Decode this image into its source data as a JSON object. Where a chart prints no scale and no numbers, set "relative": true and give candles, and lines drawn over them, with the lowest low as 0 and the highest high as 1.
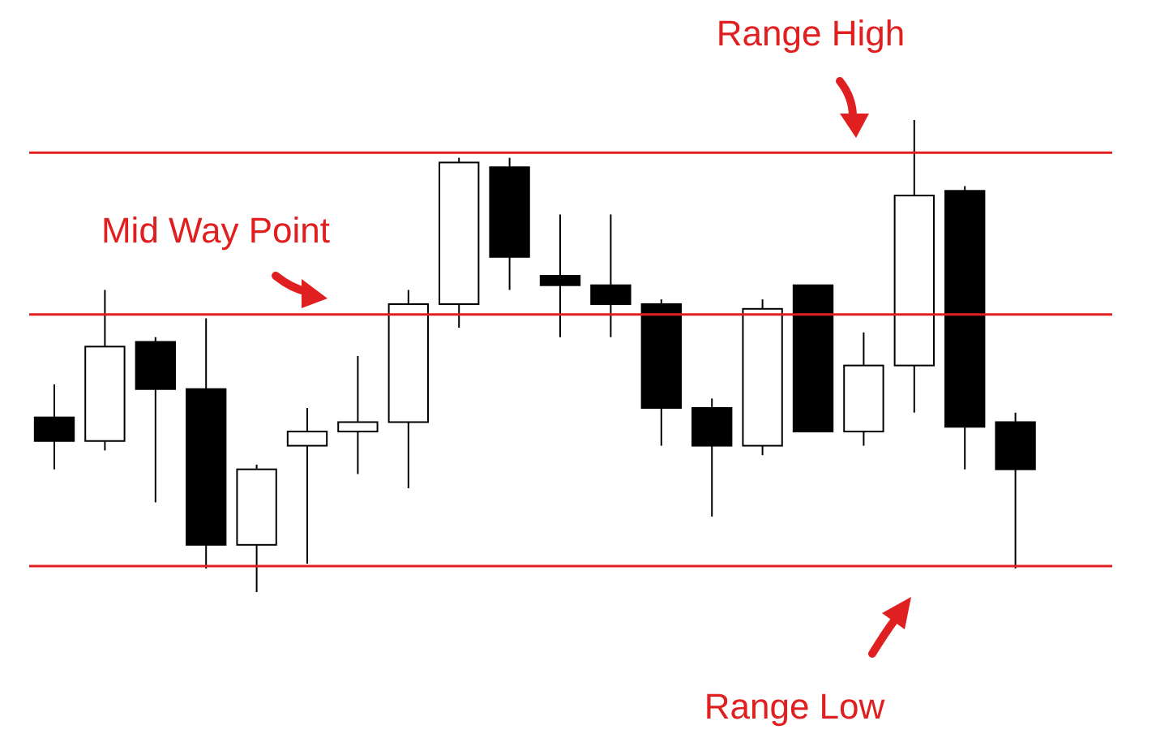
{
  "chart_data": {
    "type": "candlestick",
    "relative": true,
    "color": "#000000",
    "categories": [
      null,
      null,
      null,
      null,
      null,
      null,
      null,
      null,
      null,
      null,
      null,
      null,
      null,
      null,
      null,
      null,
      null,
      null,
      null,
      null
    ],
    "ohlc": [
      [
        0.37,
        0.44,
        0.26,
        0.32
      ],
      [
        0.32,
        0.64,
        0.3,
        0.52
      ],
      [
        0.53,
        0.54,
        0.19,
        0.43
      ],
      [
        0.43,
        0.58,
        0.05,
        0.1
      ],
      [
        0.1,
        0.27,
        0,
        0.26
      ],
      [
        0.31,
        0.39,
        0.06,
        0.34
      ],
      [
        0.34,
        0.5,
        0.25,
        0.36
      ],
      [
        0.36,
        0.64,
        0.22,
        0.61
      ],
      [
        0.61,
        0.92,
        0.56,
        0.91
      ],
      [
        0.9,
        0.92,
        0.64,
        0.71
      ],
      [
        0.67,
        0.8,
        0.54,
        0.65
      ],
      [
        0.65,
        0.8,
        0.54,
        0.61
      ],
      [
        0.61,
        0.62,
        0.31,
        0.39
      ],
      [
        0.39,
        0.41,
        0.16,
        0.31
      ],
      [
        0.31,
        0.62,
        0.29,
        0.6
      ],
      [
        0.65,
        0.65,
        0.34,
        0.34
      ],
      [
        0.34,
        0.55,
        0.31,
        0.48
      ],
      [
        0.48,
        1,
        0.38,
        0.84
      ],
      [
        0.85,
        0.86,
        0.26,
        0.35
      ],
      [
        0.36,
        0.38,
        0.05,
        0.26
      ]
    ],
    "colors": [
      "#000000",
      "#ffffff",
      "#000000",
      "#000000",
      "#ffffff",
      "#ffffff",
      "#ffffff",
      "#ffffff",
      "#ffffff",
      "#000000",
      "#000000",
      "#000000",
      "#000000",
      "#000000",
      "#ffffff",
      "#000000",
      "#ffffff",
      "#ffffff",
      "#000000",
      "#000000"
    ],
    "ref_lines": [
      {
        "axis": "y",
        "value": 0.931,
        "label": "Range High",
        "color": "#e02020"
      },
      {
        "axis": "y",
        "value": 0.588,
        "label": "Mid Way Point",
        "color": "#e02020"
      },
      {
        "axis": "y",
        "value": 0.055,
        "label": "Range Low",
        "color": "#e02020"
      }
    ]
  }
}
